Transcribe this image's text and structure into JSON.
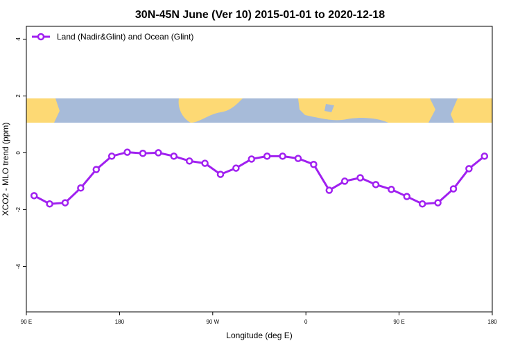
{
  "chart_data": {
    "type": "line",
    "title": "30N-45N June (Ver 10)   2015-01-01 to 2020-12-18",
    "x_label": "Longitude (deg E)",
    "y_label": "XCO2 - MLO trend (ppm)",
    "x": [
      97.5,
      112.5,
      127.5,
      142.5,
      157.5,
      172.5,
      187.5,
      202.5,
      217.5,
      232.5,
      247.5,
      262.5,
      277.5,
      292.5,
      307.5,
      322.5,
      337.5,
      352.5,
      367.5,
      382.5,
      397.5,
      412.5,
      427.5,
      442.5,
      457.5,
      472.5,
      487.5,
      502.5,
      517.5,
      532.5
    ],
    "series": [
      {
        "name": "Land (Nadir&Glint) and Ocean (Glint)",
        "color": "#a020f0",
        "values": [
          -1.51,
          -1.8,
          -1.76,
          -1.24,
          -0.59,
          -0.12,
          0.02,
          -0.02,
          0.0,
          -0.12,
          -0.29,
          -0.37,
          -0.76,
          -0.54,
          -0.22,
          -0.12,
          -0.12,
          -0.2,
          -0.41,
          -1.32,
          -1.0,
          -0.88,
          -1.12,
          -1.29,
          -1.54,
          -1.8,
          -1.76,
          -1.27,
          -0.56,
          -0.12
        ]
      }
    ],
    "xlim": [
      90,
      540
    ],
    "ylim": [
      -5.6,
      4.45
    ],
    "xticks": [
      {
        "value": 90,
        "label": "90 E"
      },
      {
        "value": 180,
        "label": "180"
      },
      {
        "value": 270,
        "label": "90 W"
      },
      {
        "value": 360,
        "label": "0"
      },
      {
        "value": 450,
        "label": "90 E"
      },
      {
        "value": 540,
        "label": "180"
      }
    ],
    "yticks": [
      -4,
      -2,
      0,
      2,
      4
    ],
    "legend": "top-left"
  }
}
